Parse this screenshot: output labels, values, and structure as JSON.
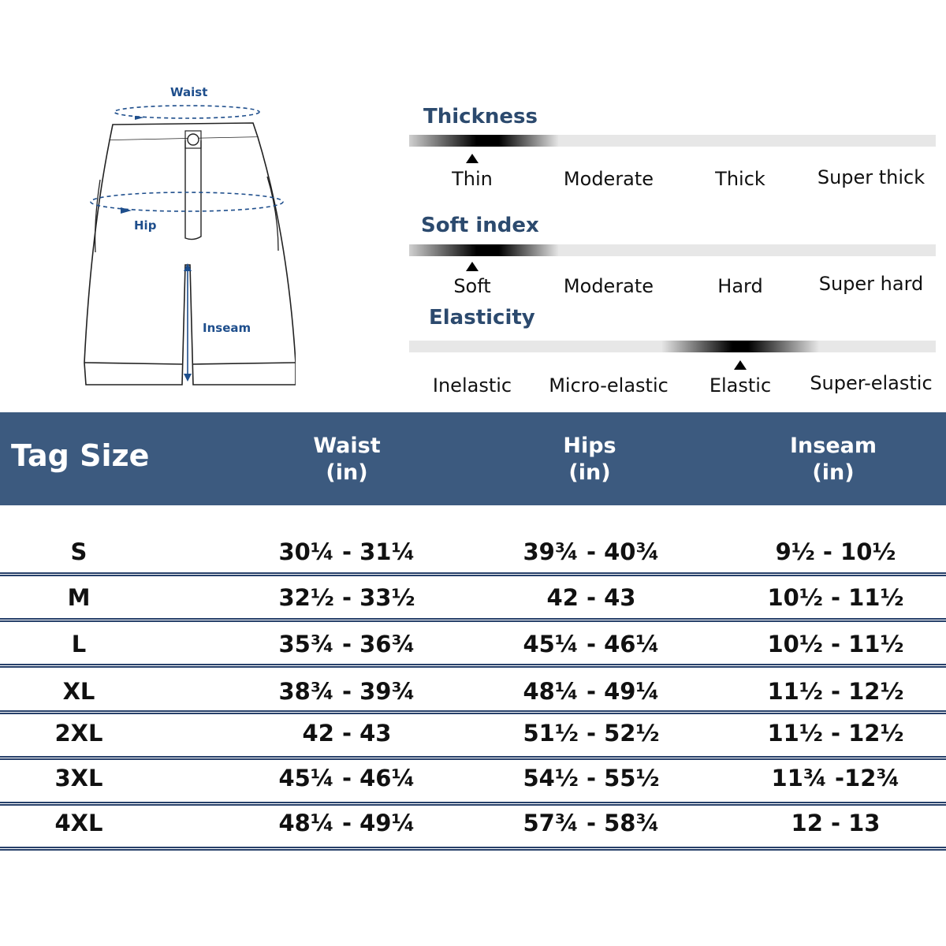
{
  "diagram": {
    "waist_label": "Waist",
    "hip_label": "Hip",
    "inseam_label": "Inseam"
  },
  "scales": [
    {
      "title": "Thickness",
      "options": [
        "Thin",
        "Moderate",
        "Thick",
        "Super thick"
      ],
      "selected_index": 0
    },
    {
      "title": "Soft index",
      "options": [
        "Soft",
        "Moderate",
        "Hard",
        "Super hard"
      ],
      "selected_index": 0
    },
    {
      "title": "Elasticity",
      "options": [
        "Inelastic",
        "Micro-elastic",
        "Elastic",
        "Super-elastic"
      ],
      "selected_index": 2
    }
  ],
  "table": {
    "header": {
      "tag_size": "Tag Size",
      "waist": "Waist",
      "hips": "Hips",
      "inseam": "Inseam",
      "unit": "(in)"
    },
    "rows": [
      {
        "size": "S",
        "waist": "30¼ - 31¼",
        "hips": "39¾ - 40¾",
        "inseam": "9½ - 10½"
      },
      {
        "size": "M",
        "waist": "32½ - 33½",
        "hips": "42 - 43",
        "inseam": "10½ - 11½"
      },
      {
        "size": "L",
        "waist": "35¾ - 36¾",
        "hips": "45¼ - 46¼",
        "inseam": "10½ - 11½"
      },
      {
        "size": "XL",
        "waist": "38¾ - 39¾",
        "hips": "48¼ - 49¼",
        "inseam": "11½ - 12½"
      },
      {
        "size": "2XL",
        "waist": "42 - 43",
        "hips": "51½ - 52½",
        "inseam": "11½ - 12½"
      },
      {
        "size": "3XL",
        "waist": "45¼ - 46¼",
        "hips": "54½ - 55½",
        "inseam": "11¾ -12¾"
      },
      {
        "size": "4XL",
        "waist": "48¼ - 49¼",
        "hips": "57¾ - 58¾",
        "inseam": "12 - 13"
      }
    ]
  },
  "colors": {
    "header_bg": "#3c5a7f",
    "accent_blue": "#1e4e8c",
    "title_blue": "#2c4a6e",
    "divider": "#27406a"
  }
}
